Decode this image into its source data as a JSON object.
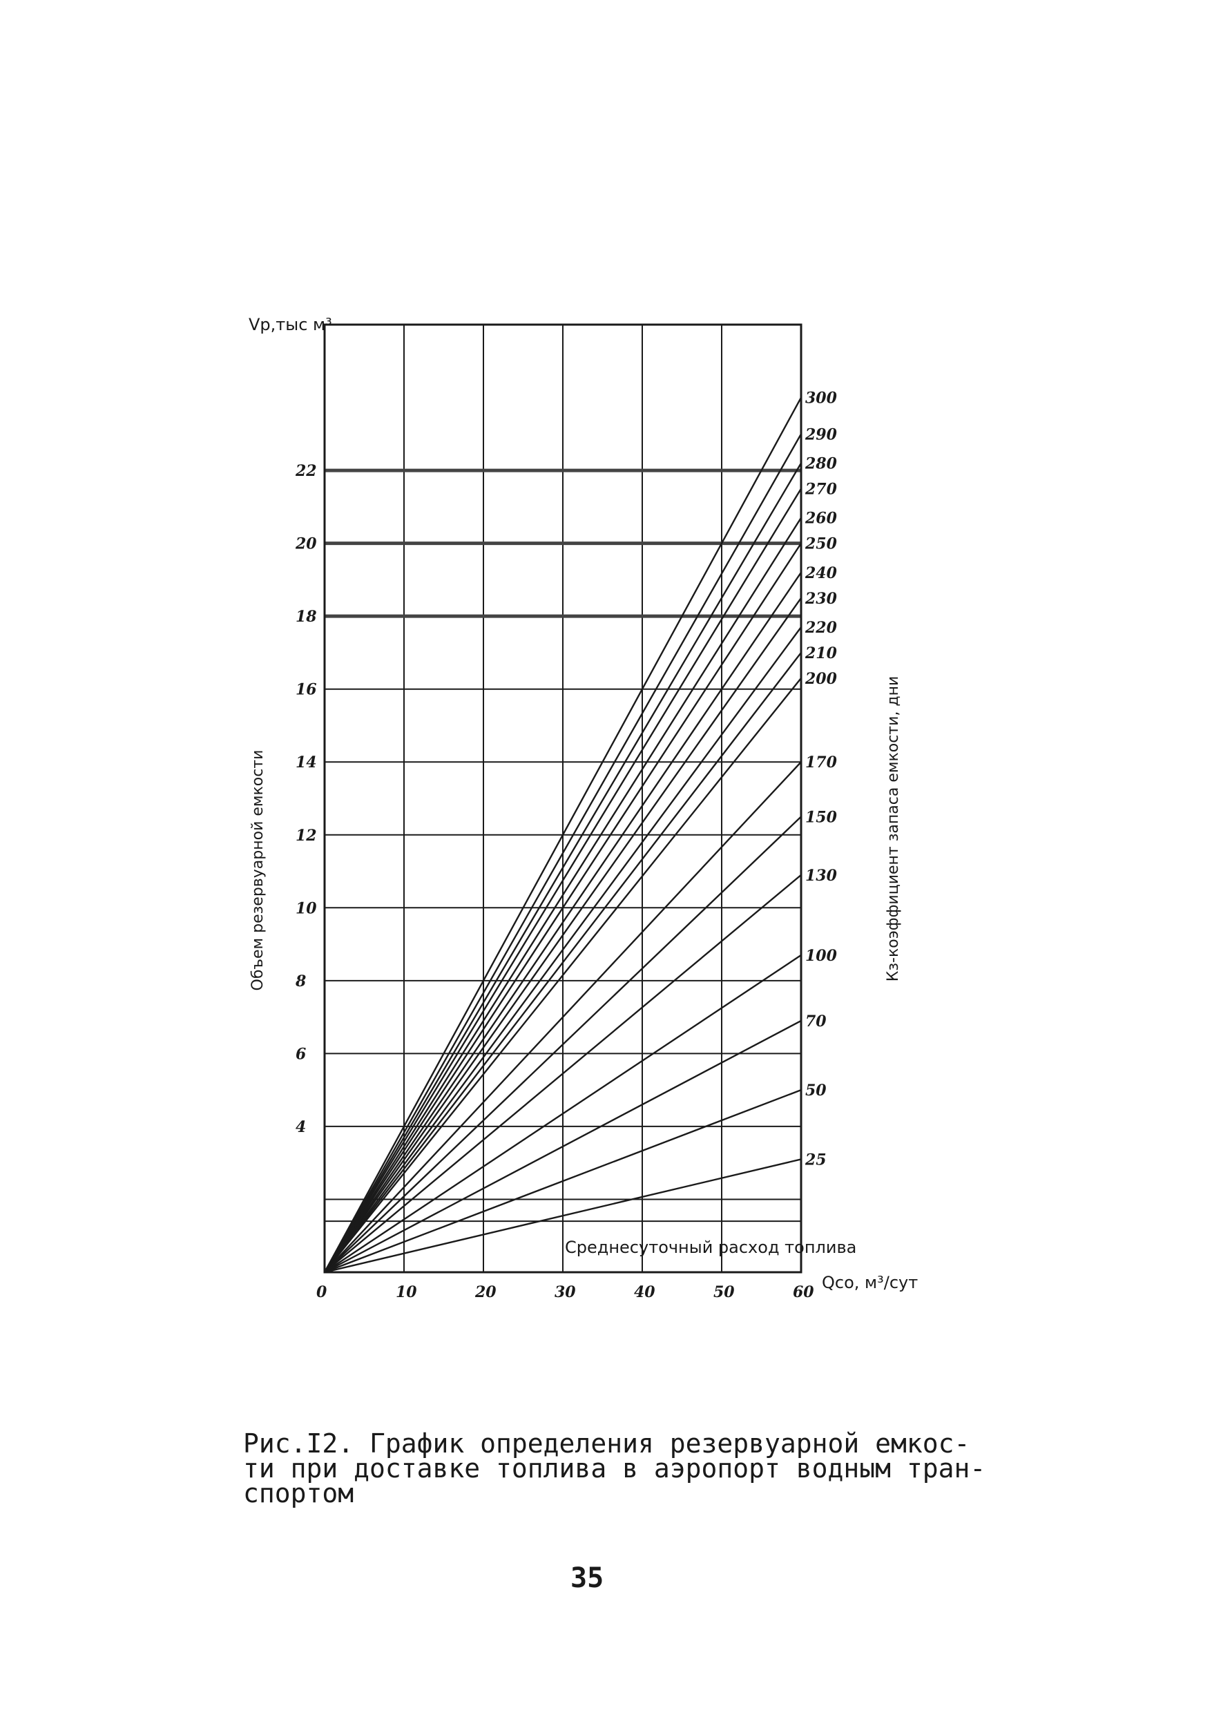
{
  "chart_data": {
    "type": "line",
    "y_axis_title": "Vр,тыс м³",
    "y_axis_label": "Объем резервуарной емкости",
    "x_axis_title": "Qсо, м³/сут",
    "x_axis_label": "Среднесуточный расход топлива",
    "right_axis_label": "Кз-коэффициент запаса емкости, дни",
    "xlim": [
      0,
      60
    ],
    "ylim": [
      0,
      26
    ],
    "x_ticks": [
      "0",
      "10",
      "20",
      "30",
      "40",
      "50",
      "60"
    ],
    "y_ticks": [
      {
        "value": 4,
        "label": "4"
      },
      {
        "value": 6,
        "label": "6"
      },
      {
        "value": 8,
        "label": "8"
      },
      {
        "value": 10,
        "label": "10"
      },
      {
        "value": 12,
        "label": "12"
      },
      {
        "value": 14,
        "label": "14"
      },
      {
        "value": 16,
        "label": "16"
      },
      {
        "value": 18,
        "label": "18"
      },
      {
        "value": 20,
        "label": "20"
      },
      {
        "value": 22,
        "label": "22"
      }
    ],
    "extra_gridlines_y": [
      2,
      1.4
    ],
    "grid": true,
    "series": [
      {
        "name": "25",
        "x": [
          0,
          60
        ],
        "y": [
          0,
          3.1
        ]
      },
      {
        "name": "50",
        "x": [
          0,
          60
        ],
        "y": [
          0,
          5.0
        ]
      },
      {
        "name": "70",
        "x": [
          0,
          60
        ],
        "y": [
          0,
          6.9
        ]
      },
      {
        "name": "100",
        "x": [
          0,
          60
        ],
        "y": [
          0,
          8.7
        ]
      },
      {
        "name": "130",
        "x": [
          0,
          60
        ],
        "y": [
          0,
          10.9
        ]
      },
      {
        "name": "150",
        "x": [
          0,
          60
        ],
        "y": [
          0,
          12.5
        ]
      },
      {
        "name": "170",
        "x": [
          0,
          60
        ],
        "y": [
          0,
          14.0
        ]
      },
      {
        "name": "200",
        "x": [
          0,
          60
        ],
        "y": [
          0,
          16.3
        ]
      },
      {
        "name": "210",
        "x": [
          0,
          60
        ],
        "y": [
          0,
          17.0
        ]
      },
      {
        "name": "220",
        "x": [
          0,
          60
        ],
        "y": [
          0,
          17.7
        ]
      },
      {
        "name": "230",
        "x": [
          0,
          60
        ],
        "y": [
          0,
          18.5
        ]
      },
      {
        "name": "240",
        "x": [
          0,
          60
        ],
        "y": [
          0,
          19.2
        ]
      },
      {
        "name": "250",
        "x": [
          0,
          60
        ],
        "y": [
          0,
          20.0
        ]
      },
      {
        "name": "260",
        "x": [
          0,
          60
        ],
        "y": [
          0,
          20.7
        ]
      },
      {
        "name": "270",
        "x": [
          0,
          60
        ],
        "y": [
          0,
          21.5
        ]
      },
      {
        "name": "280",
        "x": [
          0,
          60
        ],
        "y": [
          0,
          22.2
        ]
      },
      {
        "name": "290",
        "x": [
          0,
          60
        ],
        "y": [
          0,
          23.0
        ]
      },
      {
        "name": "300",
        "x": [
          0,
          60
        ],
        "y": [
          0,
          24.0
        ]
      }
    ]
  },
  "caption": {
    "line1": "Рис.I2. График определения резервуарной емкос-",
    "line2": "ти при доставке топлива в аэропорт водным тран-",
    "line3": "спортом"
  },
  "page_number": "35"
}
